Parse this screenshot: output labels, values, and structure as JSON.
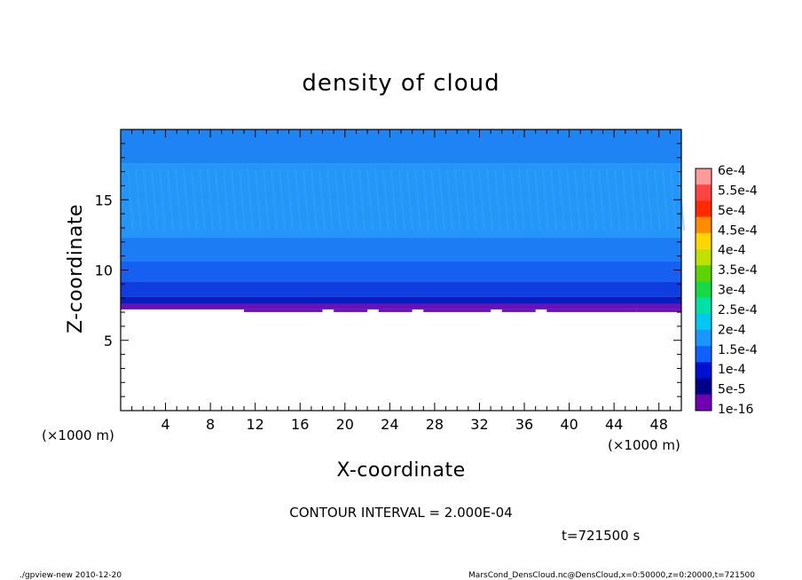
{
  "chart_data": {
    "type": "heatmap",
    "title": "density of cloud",
    "xlabel": "X-coordinate",
    "ylabel": "Z-coordinate",
    "x_unit": "(×1000 m)",
    "y_unit": "(×1000 m)",
    "xlim": [
      0,
      50
    ],
    "ylim": [
      0,
      20
    ],
    "x_ticks": [
      "4",
      "8",
      "12",
      "16",
      "20",
      "24",
      "28",
      "32",
      "36",
      "40",
      "44",
      "48"
    ],
    "y_ticks": [
      "5",
      "10",
      "15"
    ],
    "colorbar_labels": [
      "6e-4",
      "5.5e-4",
      "5e-4",
      "4.5e-4",
      "4e-4",
      "3.5e-4",
      "3e-4",
      "2.5e-4",
      "2e-4",
      "1.5e-4",
      "1e-4",
      "5e-5",
      "1e-16"
    ],
    "colorbar_colors": [
      "#ff9a9a",
      "#ff4444",
      "#ff2a00",
      "#ff8c00",
      "#ffd700",
      "#bfe000",
      "#5cd400",
      "#18d848",
      "#00e0a8",
      "#00c8f0",
      "#1c96ff",
      "#1060ff",
      "#0010d0",
      "#000088",
      "#7000b0"
    ],
    "contour_interval": "CONTOUR INTERVAL = 2.000E-04",
    "time": "t=721500 s",
    "cloud_profile": {
      "base_z": 7.2,
      "bands": [
        {
          "z0": 7.2,
          "z1": 7.6,
          "value": "1e-16"
        },
        {
          "z0": 7.6,
          "z1": 8.1,
          "value": "5e-5"
        },
        {
          "z0": 8.1,
          "z1": 9.2,
          "value": "5e-5"
        },
        {
          "z0": 9.2,
          "z1": 10.6,
          "value": "1e-4"
        },
        {
          "z0": 10.6,
          "z1": 12.3,
          "value": "1e-4"
        },
        {
          "z0": 12.3,
          "z1": 17.6,
          "value": "1.5e-4"
        },
        {
          "z0": 17.6,
          "z1": 20.0,
          "value": "1e-4"
        }
      ]
    }
  },
  "footer": {
    "program": "./gpview-new   2010-12-20",
    "source": "MarsCond_DensCloud.nc@DensCloud,x=0:50000,z=0:20000,t=721500"
  }
}
